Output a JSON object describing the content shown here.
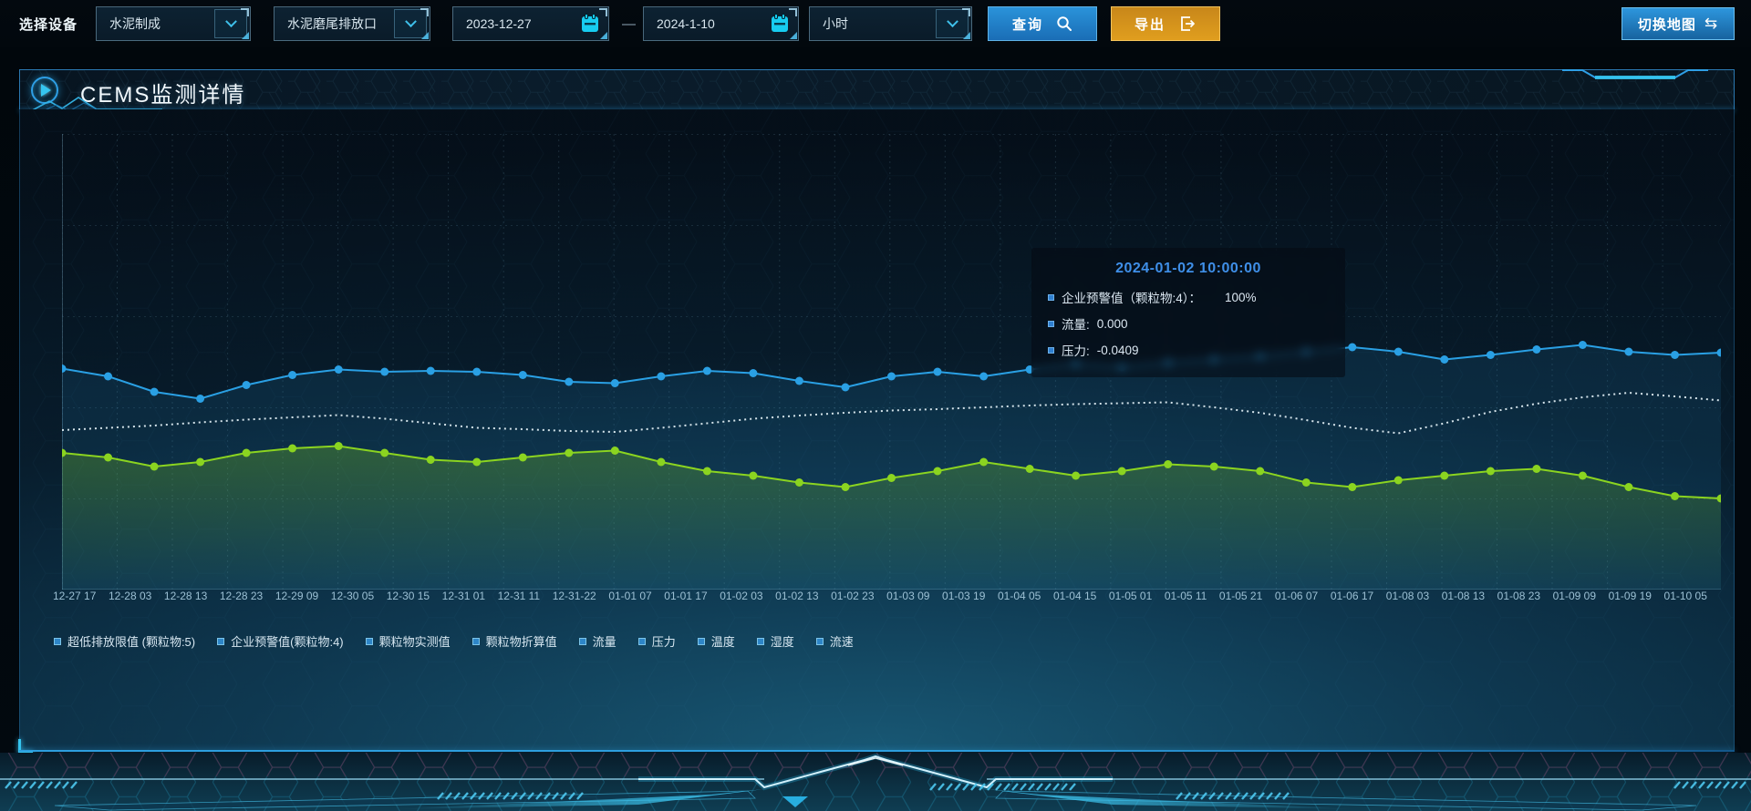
{
  "colors": {
    "accent_blue": "#2aa0e4",
    "accent_green": "#8bd420",
    "accent_cyan": "#35c6f0",
    "export_orange": "#e09e1e",
    "tooltip_title_blue": "#3f8fe8"
  },
  "toolbar": {
    "device_label": "选择设备",
    "device_select": {
      "value": "水泥制成"
    },
    "outlet_select": {
      "value": "水泥磨尾排放口"
    },
    "date_start": "2023-12-27",
    "date_separator": "—",
    "date_end": "2024-1-10",
    "interval_select": {
      "value": "小时"
    },
    "query_button": "查询",
    "export_button": "导出",
    "switch_map_button": "切换地图",
    "switch_map_glyph": "⇆"
  },
  "panel": {
    "title": "CEMS监测详情"
  },
  "tooltip": {
    "title": "2024-01-02 10:00:00",
    "items": [
      {
        "label": "企业预警值（颗粒物:4）：",
        "value": "100%"
      },
      {
        "label": "流量:",
        "value": "0.000"
      },
      {
        "label": "压力:",
        "value": "-0.0409"
      }
    ]
  },
  "legend": {
    "items": [
      "超低排放限值 (颗粒物:5)",
      "企业预警值(颗粒物:4)",
      "颗粒物实测值",
      "颗粒物折算值",
      "流量",
      "压力",
      "温度",
      "湿度",
      "流速"
    ]
  },
  "chart_data": {
    "type": "line",
    "title": "",
    "xlabel": "",
    "ylabel": "",
    "grid": true,
    "y_axis_visible": false,
    "legend_position": "bottom",
    "x_tick_labels": [
      "12-27 17",
      "12-28 03",
      "12-28 13",
      "12-28 23",
      "12-29 09",
      "12-30 05",
      "12-30 15",
      "12-31 01",
      "12-31 11",
      "12-31-22",
      "01-01 07",
      "01-01 17",
      "01-02 03",
      "01-02 13",
      "01-02 23",
      "01-03 09",
      "01-03 19",
      "01-04 05",
      "01-04 15",
      "01-05 01",
      "01-05 11",
      "01-05 21",
      "01-06 07",
      "01-06 17",
      "01-08 03",
      "01-08 13",
      "01-08 23",
      "01-09 09",
      "01-09 19",
      "01-10 05"
    ],
    "series": [
      {
        "id": "blue-line",
        "color": "#2aa0e4",
        "line": "solid",
        "marker": "dot",
        "area": "blue",
        "y_rel": [
          0.515,
          0.532,
          0.566,
          0.581,
          0.551,
          0.529,
          0.517,
          0.522,
          0.52,
          0.522,
          0.529,
          0.544,
          0.547,
          0.532,
          0.52,
          0.525,
          0.542,
          0.556,
          0.532,
          0.522,
          0.532,
          0.517,
          0.505,
          0.512,
          0.502,
          0.495,
          0.488,
          0.478,
          0.468,
          0.478,
          0.495,
          0.485,
          0.473,
          0.463,
          0.478,
          0.485,
          0.48
        ]
      },
      {
        "id": "white-dotted-line",
        "color": "#e6f3f8",
        "line": "dotted",
        "marker": "none",
        "area": "none",
        "y_rel": [
          0.65,
          0.645,
          0.64,
          0.633,
          0.627,
          0.622,
          0.617,
          0.625,
          0.635,
          0.645,
          0.648,
          0.652,
          0.654,
          0.645,
          0.635,
          0.625,
          0.618,
          0.612,
          0.607,
          0.604,
          0.6,
          0.596,
          0.593,
          0.591,
          0.589,
          0.6,
          0.612,
          0.628,
          0.645,
          0.657,
          0.635,
          0.61,
          0.592,
          0.578,
          0.568,
          0.576,
          0.585
        ]
      },
      {
        "id": "green-line",
        "color": "#8bd420",
        "line": "solid",
        "marker": "dot",
        "area": "green",
        "y_rel": [
          0.7,
          0.71,
          0.73,
          0.72,
          0.7,
          0.69,
          0.685,
          0.7,
          0.715,
          0.72,
          0.71,
          0.7,
          0.695,
          0.72,
          0.74,
          0.75,
          0.765,
          0.775,
          0.755,
          0.74,
          0.72,
          0.735,
          0.75,
          0.74,
          0.725,
          0.73,
          0.74,
          0.765,
          0.775,
          0.76,
          0.75,
          0.74,
          0.735,
          0.75,
          0.775,
          0.795,
          0.8
        ]
      }
    ]
  }
}
